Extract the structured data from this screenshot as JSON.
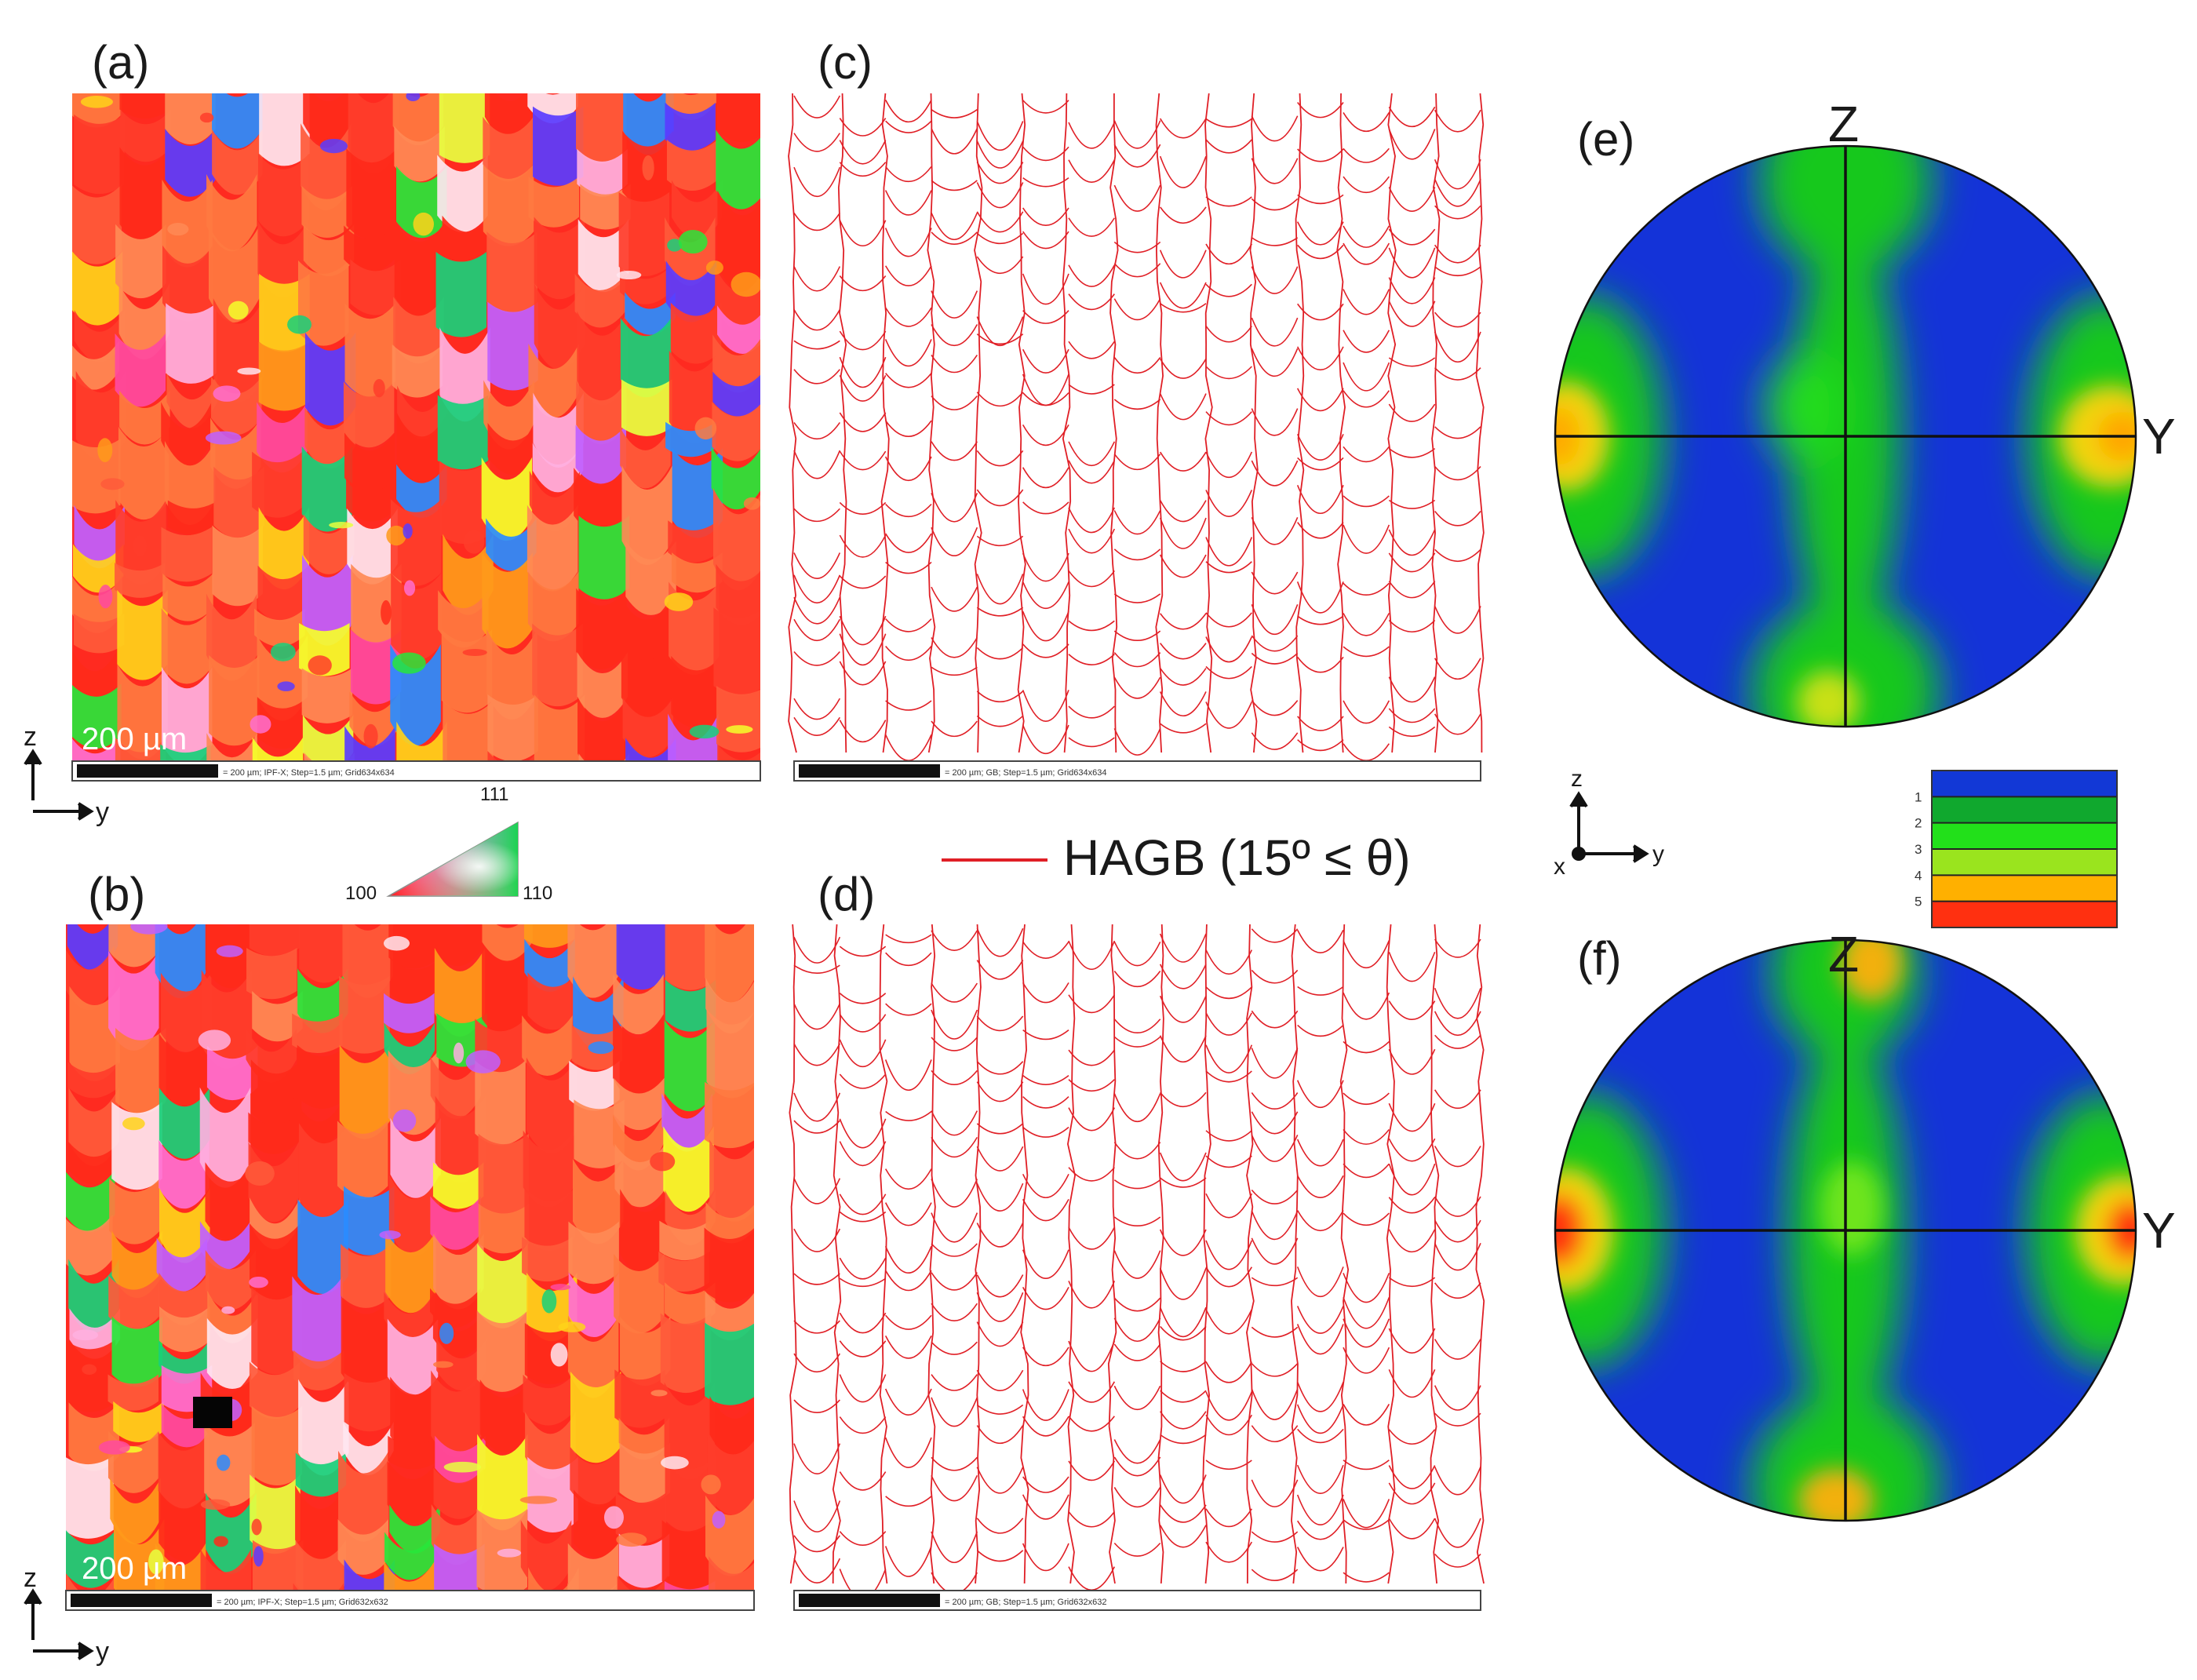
{
  "figure": {
    "panels": [
      {
        "id": "a",
        "label": "(a)",
        "type": "ipf-map",
        "scale_label": "200 µm",
        "caption_strip": "= 200 µm; IPF-X; Step=1.5 µm; Grid634x634",
        "seed": 11
      },
      {
        "id": "b",
        "label": "(b)",
        "type": "ipf-map",
        "scale_label": "200 µm",
        "caption_strip": "= 200 µm; IPF-X; Step=1.5 µm; Grid632x632",
        "seed": 29
      },
      {
        "id": "c",
        "label": "(c)",
        "type": "grain-boundary-map",
        "caption_strip": "= 200 µm; GB; Step=1.5 µm; Grid634x634",
        "seed": 47
      },
      {
        "id": "d",
        "label": "(d)",
        "type": "grain-boundary-map",
        "caption_strip": "= 200 µm; GB; Step=1.5 µm; Grid632x632",
        "seed": 83
      },
      {
        "id": "e",
        "label": "(e)",
        "type": "pole-figure",
        "axis_top": "Z",
        "axis_right": "Y"
      },
      {
        "id": "f",
        "label": "(f)",
        "type": "pole-figure",
        "axis_top": "Z",
        "axis_right": "Y"
      }
    ],
    "axes_small": {
      "vertical": "z",
      "horizontal": "y",
      "out_of_plane": "x"
    },
    "ipf_key": {
      "corner_100": "100",
      "corner_110": "110",
      "corner_111": "111"
    },
    "legend": {
      "text": "HAGB (15º ≤ θ)",
      "color": "#e01f26"
    },
    "colorbar": {
      "levels": [
        "1",
        "2",
        "3",
        "4",
        "5"
      ],
      "colors": [
        "#1238d6",
        "#10a82e",
        "#22e01a",
        "#9ae41e",
        "#ffb000",
        "#ff3010"
      ]
    },
    "colors": {
      "boundary": "#e01f26",
      "pf_blue": "#1433d8",
      "pf_green": "#19dd1c",
      "pf_yellow": "#f3e010",
      "pf_red": "#f21a08"
    }
  }
}
